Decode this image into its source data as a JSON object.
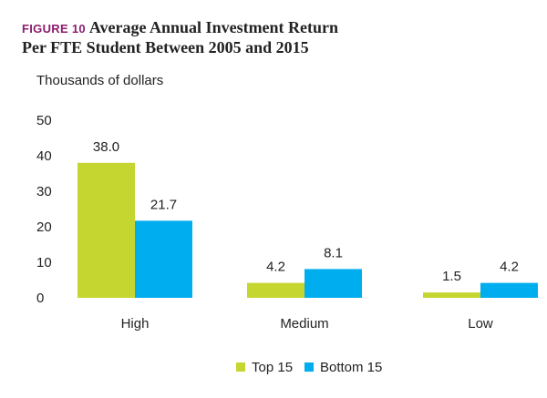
{
  "figure": {
    "label": "FIGURE 10",
    "title_line1": "Average Annual Investment Return",
    "title_line2": "Per FTE Student Between 2005 and 2015"
  },
  "chart_data": {
    "type": "bar",
    "ylabel": "Thousands of dollars",
    "xlabel": "",
    "categories": [
      "High",
      "Medium",
      "Low"
    ],
    "series": [
      {
        "name": "Top 15",
        "values": [
          38.0,
          4.2,
          1.5
        ],
        "labels": [
          "38.0",
          "4.2",
          "1.5"
        ],
        "color": "#c6d630"
      },
      {
        "name": "Bottom 15",
        "values": [
          21.7,
          8.1,
          4.2
        ],
        "labels": [
          "21.7",
          "8.1",
          "4.2"
        ],
        "color": "#00aeef"
      }
    ],
    "ylim": [
      0,
      50
    ],
    "yticks": [
      0,
      10,
      20,
      30,
      40,
      50
    ],
    "grid": false,
    "legend_position": "bottom-center"
  }
}
